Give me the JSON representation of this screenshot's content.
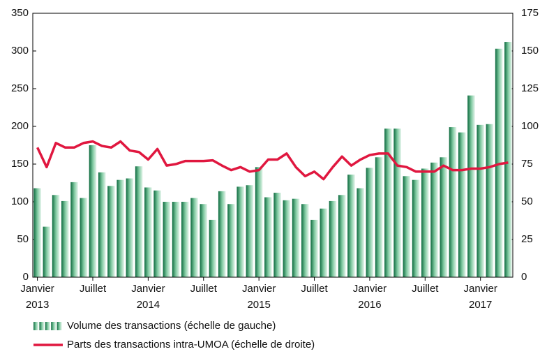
{
  "chart_data": {
    "type": "bar_line",
    "categories": [
      "Janvier",
      null,
      null,
      null,
      null,
      null,
      "Juillet",
      null,
      null,
      null,
      null,
      null,
      "Janvier",
      null,
      null,
      null,
      null,
      null,
      "Juillet",
      null,
      null,
      null,
      null,
      null,
      "Janvier",
      null,
      null,
      null,
      null,
      null,
      "Juillet",
      null,
      null,
      null,
      null,
      null,
      "Janvier",
      null,
      null,
      null,
      null,
      null,
      "Juillet",
      null,
      null,
      null,
      null,
      null,
      "Janvier",
      null,
      null,
      null
    ],
    "years": [
      "2013",
      null,
      null,
      null,
      null,
      null,
      null,
      null,
      null,
      null,
      null,
      null,
      "2014",
      null,
      null,
      null,
      null,
      null,
      null,
      null,
      null,
      null,
      null,
      null,
      "2015",
      null,
      null,
      null,
      null,
      null,
      null,
      null,
      null,
      null,
      null,
      null,
      "2016",
      null,
      null,
      null,
      null,
      null,
      null,
      null,
      null,
      null,
      null,
      null,
      "2017",
      null,
      null,
      null
    ],
    "series": [
      {
        "name": "Volume des transactions (échelle de gauche)",
        "color": "#1a7f50",
        "axis": "y",
        "values": [
          118,
          67,
          109,
          101,
          126,
          105,
          175,
          139,
          121,
          129,
          131,
          147,
          119,
          115,
          100,
          100,
          100,
          105,
          97,
          76,
          114,
          97,
          120,
          122,
          146,
          106,
          112,
          102,
          104,
          97,
          76,
          91,
          101,
          109,
          136,
          118,
          145,
          159,
          197,
          197,
          134,
          129,
          144,
          152,
          159,
          199,
          192,
          241,
          202,
          203,
          303,
          312
        ]
      },
      {
        "name": "Parts des transactions intra-UMOA (échelle de droite)",
        "color": "#e0173f",
        "axis": "y2",
        "values": [
          86,
          73,
          89,
          86,
          86,
          89,
          90,
          87,
          86,
          90,
          84,
          83,
          78,
          85,
          74,
          75,
          77,
          77,
          77,
          77.5,
          74,
          71,
          73,
          70,
          71,
          78,
          78,
          82,
          73,
          67,
          70,
          65,
          73,
          80,
          74,
          78,
          81,
          82,
          82,
          74,
          73,
          70,
          70,
          70,
          74,
          71,
          71,
          72,
          72,
          73,
          75,
          76
        ]
      }
    ],
    "ylim": [
      0,
      350
    ],
    "yticks": [
      0,
      50,
      100,
      150,
      200,
      250,
      300,
      350
    ],
    "y2lim": [
      0,
      175
    ],
    "y2ticks": [
      0,
      25,
      50,
      75,
      100,
      125,
      150,
      175
    ],
    "grid": false
  }
}
